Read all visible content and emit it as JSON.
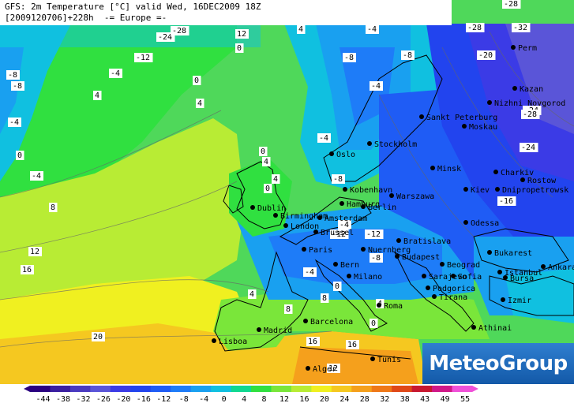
{
  "header": {
    "line1": "GFS: 2m Temperature [°C] valid Wed, 16DEC2009 18Z",
    "line2": "[2009120706]+228h  -= Europe =-"
  },
  "logo": {
    "text": "MeteoGroup"
  },
  "scale": {
    "labels": [
      "-44",
      "-38",
      "-32",
      "-26",
      "-20",
      "-16",
      "-12",
      "-8",
      "-4",
      "0",
      "4",
      "8",
      "12",
      "16",
      "20",
      "24",
      "28",
      "32",
      "38",
      "43",
      "49",
      "55"
    ],
    "colors": [
      "#2a0080",
      "#3a1fa0",
      "#4a3ac0",
      "#5a55d8",
      "#3b3be6",
      "#2244ee",
      "#1f5cf5",
      "#1e7cf8",
      "#19a0f0",
      "#10c0e0",
      "#10d890",
      "#30e040",
      "#7ae63a",
      "#b8ec34",
      "#f0f020",
      "#f5c820",
      "#f5a01c",
      "#ef7818",
      "#e04818",
      "#c81830",
      "#d01888",
      "#f050d8"
    ]
  },
  "cities": [
    {
      "name": "Oslo"
    },
    {
      "name": "Stockholm"
    },
    {
      "name": "Sankt Peterburg"
    },
    {
      "name": "Moskau"
    },
    {
      "name": "Minsk"
    },
    {
      "name": "Kiev"
    },
    {
      "name": "Kobenhavn"
    },
    {
      "name": "Hamburg"
    },
    {
      "name": "Berlin"
    },
    {
      "name": "Warszawa"
    },
    {
      "name": "Dublin"
    },
    {
      "name": "Birmingham"
    },
    {
      "name": "London"
    },
    {
      "name": "Amsterdam"
    },
    {
      "name": "Brussel"
    },
    {
      "name": "Paris"
    },
    {
      "name": "Bratislava"
    },
    {
      "name": "Budapest"
    },
    {
      "name": "Nuernberg"
    },
    {
      "name": "Bern"
    },
    {
      "name": "Milano"
    },
    {
      "name": "Beograd"
    },
    {
      "name": "Bukarest"
    },
    {
      "name": "Sarajevo"
    },
    {
      "name": "Sofia"
    },
    {
      "name": "Podgorica"
    },
    {
      "name": "Tirana"
    },
    {
      "name": "Roma"
    },
    {
      "name": "Madrid"
    },
    {
      "name": "Barcelona"
    },
    {
      "name": "Lisboa"
    },
    {
      "name": "Alger"
    },
    {
      "name": "Tunis"
    },
    {
      "name": "Athinai"
    },
    {
      "name": "Izmir"
    },
    {
      "name": "Istanbul"
    },
    {
      "name": "Bursa"
    },
    {
      "name": "Ankara"
    },
    {
      "name": "Kazan"
    },
    {
      "name": "Nizhni Novgorod"
    },
    {
      "name": "Charkiv"
    },
    {
      "name": "Dnipropetrowsk"
    },
    {
      "name": "Rostow"
    },
    {
      "name": "Odessa"
    },
    {
      "name": "Perm"
    }
  ],
  "isotherm_labels": [
    "4",
    "12",
    "-24",
    "-28",
    "-12",
    "-4",
    "0",
    "-8",
    "-4",
    "4",
    "0",
    "-8",
    "-4",
    "0",
    "4",
    "8",
    "12",
    "16",
    "20",
    "-28",
    "-32",
    "-28",
    "-20",
    "-24",
    "-28",
    "-24",
    "-16",
    "-8",
    "-4",
    "-8",
    "-4",
    "-12",
    "-8",
    "-4",
    "0",
    "4",
    "8",
    "12",
    "16",
    "-8",
    "-12",
    "-4",
    "-4",
    "0",
    "4",
    "0",
    "4",
    "8",
    "16",
    "12",
    "16",
    "8",
    "4",
    "0"
  ]
}
